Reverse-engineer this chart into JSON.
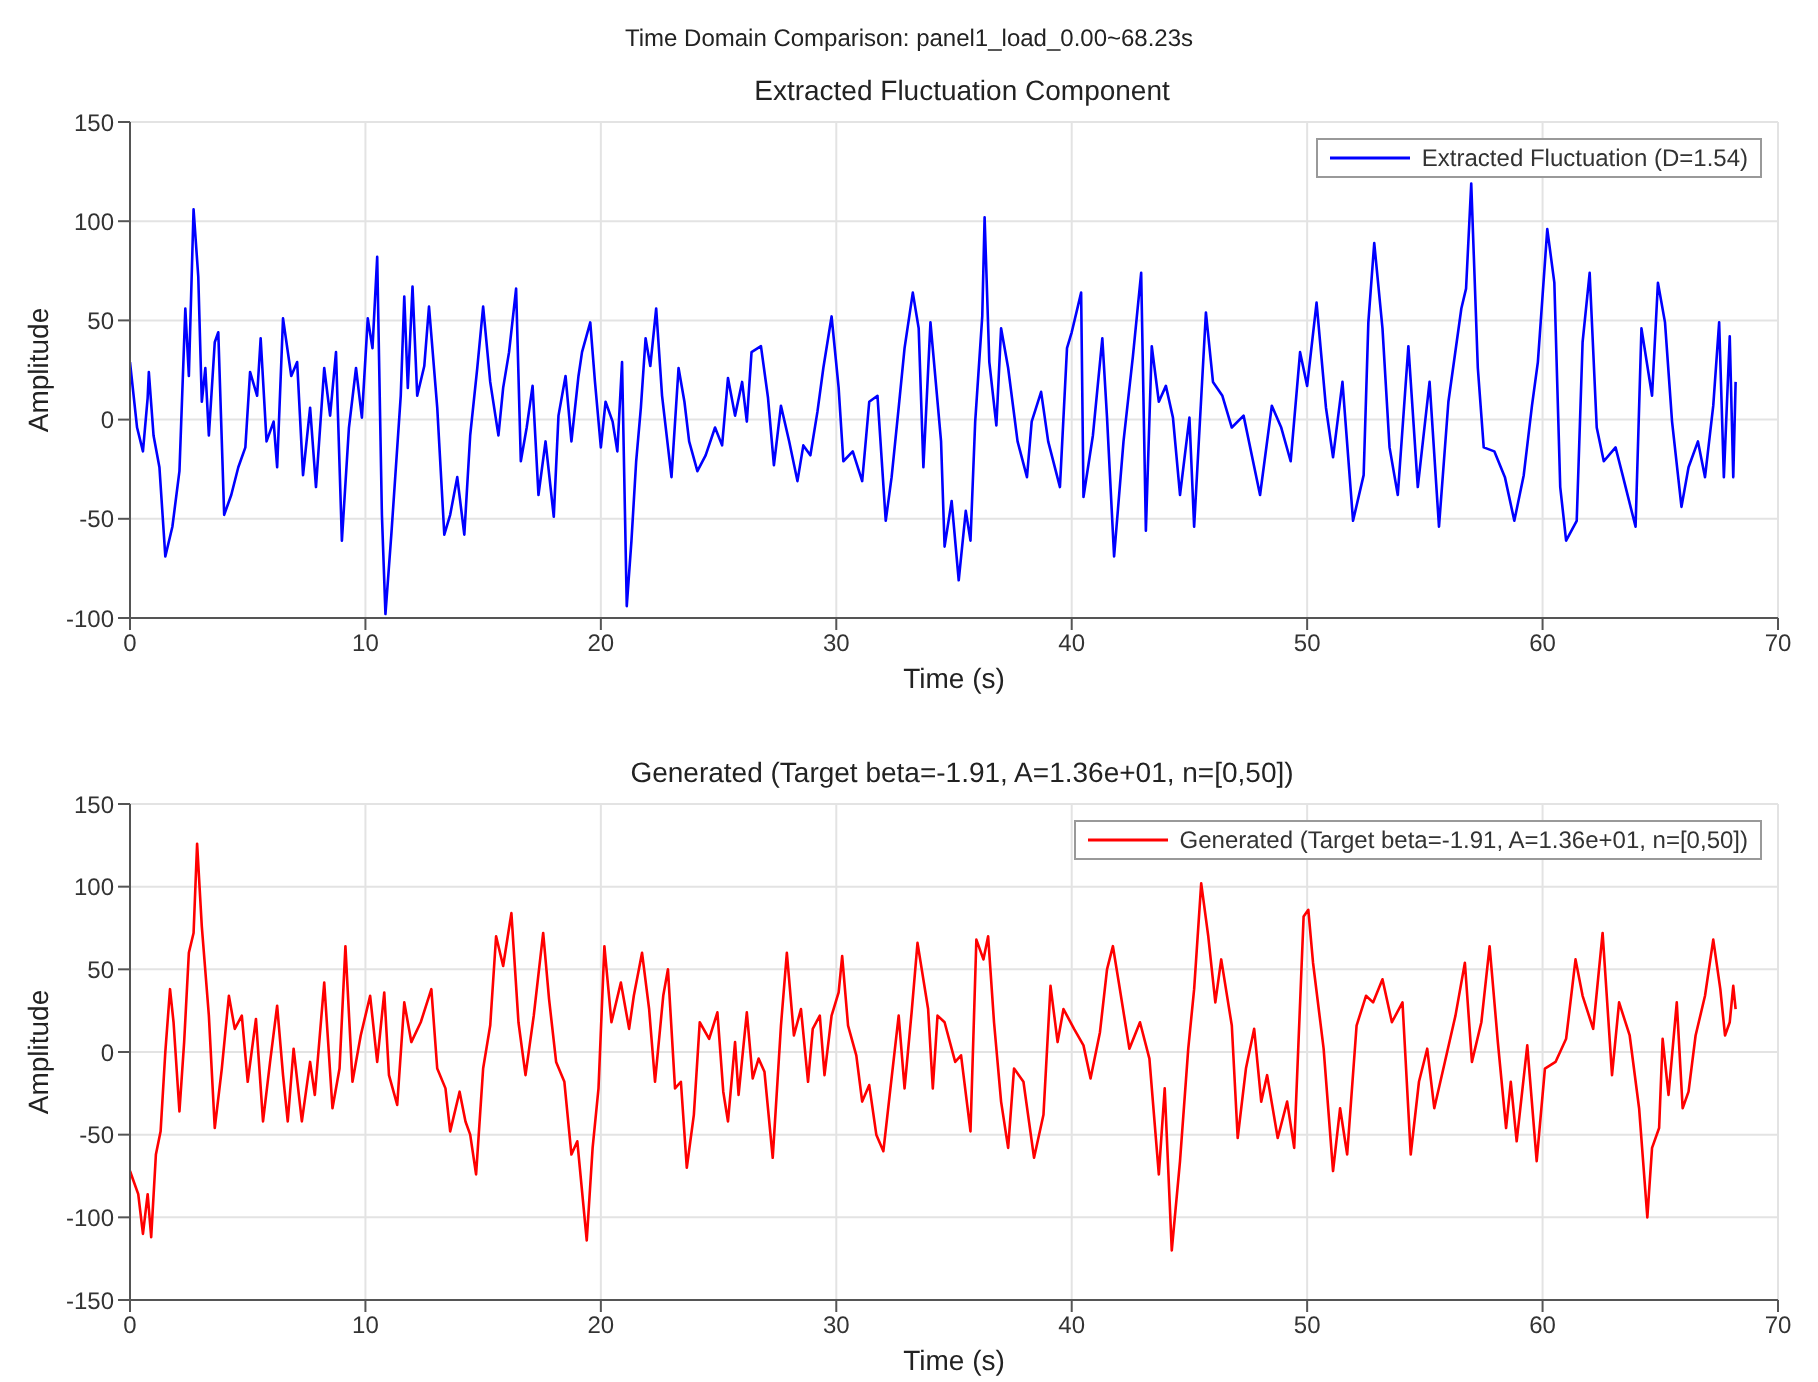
{
  "chart_data": [
    {
      "type": "line",
      "annotations": [
        "Time Domain Comparison: panel1_load_0.00~68.23s"
      ],
      "title": "Extracted Fluctuation Component",
      "xlabel": "Time (s)",
      "ylabel": "Amplitude",
      "xlim": [
        0,
        70
      ],
      "xticks": [
        0,
        10,
        20,
        30,
        40,
        50,
        60,
        70
      ],
      "ylim": [
        -100,
        150
      ],
      "yticks": [
        -100,
        -50,
        0,
        50,
        100,
        150
      ],
      "grid": true,
      "legend": "top right",
      "series": [
        {
          "name": "Extracted Fluctuation (D=1.54)",
          "color": "#0000ff",
          "x": [
            0,
            0.3,
            0.55,
            0.75,
            0.8,
            1.0,
            1.25,
            1.5,
            1.8,
            2.1,
            2.35,
            2.5,
            2.7,
            2.9,
            3.05,
            3.2,
            3.35,
            3.6,
            3.75,
            4.0,
            4.3,
            4.6,
            4.9,
            5.1,
            5.4,
            5.55,
            5.8,
            6.1,
            6.25,
            6.5,
            6.85,
            7.1,
            7.35,
            7.65,
            7.9,
            8.25,
            8.5,
            8.75,
            9.0,
            9.3,
            9.6,
            9.85,
            10.1,
            10.3,
            10.5,
            10.7,
            10.85,
            11.1,
            11.5,
            11.65,
            11.8,
            12.0,
            12.2,
            12.5,
            12.7,
            13.05,
            13.35,
            13.6,
            13.9,
            14.2,
            14.45,
            14.75,
            15.0,
            15.3,
            15.65,
            15.85,
            16.1,
            16.4,
            16.6,
            16.85,
            17.1,
            17.35,
            17.65,
            18.0,
            18.2,
            18.5,
            18.75,
            19.05,
            19.2,
            19.55,
            19.75,
            20.0,
            20.2,
            20.5,
            20.7,
            20.9,
            21.1,
            21.3,
            21.5,
            21.7,
            21.9,
            22.1,
            22.35,
            22.6,
            23.0,
            23.3,
            23.55,
            23.75,
            24.1,
            24.45,
            24.85,
            25.15,
            25.4,
            25.7,
            26.0,
            26.2,
            26.4,
            26.8,
            27.1,
            27.35,
            27.65,
            28.0,
            28.35,
            28.6,
            28.9,
            29.2,
            29.45,
            29.8,
            30.1,
            30.3,
            30.7,
            31.1,
            31.4,
            31.75,
            32.1,
            32.35,
            32.65,
            32.9,
            33.25,
            33.5,
            33.7,
            34.0,
            34.45,
            34.6,
            34.9,
            35.2,
            35.5,
            35.7,
            35.9,
            36.2,
            36.3,
            36.5,
            36.8,
            37.0,
            37.3,
            37.7,
            38.1,
            38.3,
            38.7,
            39.0,
            39.5,
            39.8,
            40.0,
            40.4,
            40.5,
            40.9,
            41.3,
            41.5,
            41.8,
            42.2,
            42.6,
            42.95,
            43.15,
            43.4,
            43.7,
            44.0,
            44.3,
            44.6,
            45.0,
            45.2,
            45.7,
            46.0,
            46.4,
            46.8,
            47.3,
            48.0,
            48.5,
            48.9,
            49.3,
            49.7,
            50.0,
            50.4,
            50.8,
            51.1,
            51.5,
            51.95,
            52.4,
            52.6,
            52.85,
            53.2,
            53.5,
            53.85,
            54.3,
            54.7,
            55.2,
            55.6,
            56.0,
            56.55,
            56.75,
            56.97,
            57.25,
            57.5,
            57.95,
            58.4,
            58.8,
            59.2,
            59.55,
            59.8,
            60.2,
            60.5,
            60.75,
            61.0,
            61.45,
            61.7,
            62.0,
            62.3,
            62.6,
            63.1,
            63.4,
            63.95,
            64.2,
            64.65,
            64.9,
            65.2,
            65.5,
            65.9,
            66.2,
            66.6,
            66.9,
            67.25,
            67.5,
            67.7,
            67.95,
            68.1,
            68.2
          ],
          "values": [
            29,
            -4,
            -16,
            11,
            24,
            -8,
            -24,
            -69,
            -54,
            -26,
            56,
            22,
            106,
            72,
            9,
            26,
            -8,
            39,
            44,
            -48,
            -38,
            -24,
            -14,
            24,
            12,
            41,
            -11,
            -1,
            -24,
            51,
            22,
            29,
            -28,
            6,
            -34,
            26,
            2,
            34,
            -61,
            -4,
            26,
            1,
            51,
            36,
            82,
            -48,
            -98,
            -58,
            12,
            62,
            16,
            67,
            12,
            27,
            57,
            6,
            -58,
            -48,
            -29,
            -58,
            -8,
            26,
            57,
            19,
            -8,
            16,
            34,
            66,
            -21,
            -4,
            17,
            -38,
            -11,
            -49,
            2,
            22,
            -11,
            22,
            34,
            49,
            19,
            -14,
            9,
            -1,
            -16,
            29,
            -94,
            -61,
            -21,
            6,
            41,
            27,
            56,
            12,
            -29,
            26,
            9,
            -11,
            -26,
            -18,
            -4,
            -13,
            21,
            2,
            19,
            -1,
            34,
            37,
            11,
            -23,
            7,
            -11,
            -31,
            -13,
            -18,
            4,
            26,
            52,
            16,
            -21,
            -16,
            -31,
            9,
            12,
            -51,
            -29,
            6,
            36,
            64,
            46,
            -24,
            49,
            -11,
            -64,
            -41,
            -81,
            -46,
            -61,
            -1,
            52,
            102,
            29,
            -3,
            46,
            26,
            -11,
            -29,
            -1,
            14,
            -11,
            -34,
            36,
            44,
            64,
            -39,
            -8,
            41,
            1,
            -69,
            -11,
            32,
            74,
            -56,
            37,
            9,
            17,
            1,
            -38,
            1,
            -54,
            54,
            19,
            12,
            -4,
            2,
            -38,
            7,
            -4,
            -21,
            34,
            17,
            59,
            6,
            -19,
            19,
            -51,
            -28,
            49,
            89,
            46,
            -14,
            -38,
            37,
            -34,
            19,
            -54,
            9,
            56,
            66,
            119,
            26,
            -14,
            -16,
            -29,
            -51,
            -28,
            7,
            29,
            96,
            69,
            -34,
            -61,
            -51,
            39,
            74,
            -4,
            -21,
            -14,
            -28,
            -54,
            46,
            12,
            69,
            49,
            -1,
            -44,
            -24,
            -11,
            -29,
            7,
            49,
            -29,
            42,
            -29,
            19
          ]
        }
      ]
    },
    {
      "type": "line",
      "title": "Generated (Target beta=-1.91, A=1.36e+01, n=[0,50])",
      "xlabel": "Time (s)",
      "ylabel": "Amplitude",
      "xlim": [
        0,
        70
      ],
      "xticks": [
        0,
        10,
        20,
        30,
        40,
        50,
        60,
        70
      ],
      "ylim": [
        -150,
        150
      ],
      "yticks": [
        -150,
        -100,
        -50,
        0,
        50,
        100,
        150
      ],
      "grid": true,
      "legend": "top right",
      "series": [
        {
          "name": "Generated (Target beta=-1.91, A=1.36e+01, n=[0,50])",
          "color": "#ff0000",
          "x": [
            0,
            0.35,
            0.55,
            0.75,
            0.9,
            1.1,
            1.3,
            1.5,
            1.7,
            1.85,
            2.1,
            2.3,
            2.5,
            2.7,
            2.85,
            3.05,
            3.35,
            3.6,
            3.9,
            4.2,
            4.45,
            4.75,
            5.0,
            5.35,
            5.65,
            5.95,
            6.25,
            6.5,
            6.7,
            6.95,
            7.3,
            7.65,
            7.85,
            8.25,
            8.6,
            8.9,
            9.15,
            9.45,
            9.8,
            10.2,
            10.5,
            10.8,
            11.0,
            11.35,
            11.65,
            11.95,
            12.35,
            12.8,
            13.05,
            13.4,
            13.6,
            14.0,
            14.25,
            14.45,
            14.7,
            15.0,
            15.3,
            15.55,
            15.85,
            16.2,
            16.5,
            16.8,
            17.15,
            17.55,
            17.8,
            18.1,
            18.45,
            18.75,
            19.0,
            19.4,
            19.65,
            19.9,
            20.15,
            20.45,
            20.85,
            21.2,
            21.4,
            21.75,
            22.05,
            22.3,
            22.65,
            22.85,
            23.15,
            23.4,
            23.65,
            23.95,
            24.2,
            24.6,
            24.95,
            25.2,
            25.4,
            25.7,
            25.85,
            26.2,
            26.45,
            26.7,
            26.95,
            27.3,
            27.65,
            27.9,
            28.2,
            28.5,
            28.8,
            29.0,
            29.3,
            29.5,
            29.8,
            30.1,
            30.25,
            30.5,
            30.85,
            31.1,
            31.4,
            31.7,
            32.0,
            32.3,
            32.65,
            32.9,
            33.2,
            33.45,
            33.9,
            34.1,
            34.3,
            34.6,
            35.05,
            35.3,
            35.7,
            35.95,
            36.25,
            36.45,
            36.7,
            37.0,
            37.3,
            37.55,
            37.95,
            38.4,
            38.8,
            39.1,
            39.4,
            39.65,
            40.1,
            40.5,
            40.8,
            41.2,
            41.5,
            41.75,
            42.0,
            42.45,
            42.9,
            43.3,
            43.7,
            43.95,
            44.25,
            44.6,
            44.95,
            45.2,
            45.5,
            45.8,
            46.1,
            46.35,
            46.8,
            47.05,
            47.4,
            47.75,
            48.05,
            48.3,
            48.75,
            49.15,
            49.45,
            49.85,
            50.05,
            50.25,
            50.7,
            51.1,
            51.4,
            51.7,
            52.1,
            52.5,
            52.8,
            53.2,
            53.6,
            54.05,
            54.4,
            54.75,
            55.1,
            55.4,
            55.85,
            56.3,
            56.7,
            57.0,
            57.4,
            57.75,
            58.1,
            58.45,
            58.65,
            58.9,
            59.35,
            59.75,
            60.1,
            60.55,
            61.0,
            61.4,
            61.7,
            62.15,
            62.55,
            62.95,
            63.25,
            63.7,
            64.1,
            64.45,
            64.65,
            64.95,
            65.1,
            65.35,
            65.7,
            65.95,
            66.2,
            66.5,
            66.9,
            67.25,
            67.55,
            67.75,
            67.95,
            68.1,
            68.2
          ],
          "values": [
            -72,
            -86,
            -110,
            -86,
            -112,
            -62,
            -48,
            0,
            38,
            18,
            -36,
            6,
            60,
            72,
            126,
            76,
            22,
            -46,
            -10,
            34,
            14,
            22,
            -18,
            20,
            -42,
            -6,
            28,
            -14,
            -42,
            2,
            -42,
            -6,
            -26,
            42,
            -34,
            -10,
            64,
            -18,
            10,
            34,
            -6,
            36,
            -14,
            -32,
            30,
            6,
            18,
            38,
            -10,
            -22,
            -48,
            -24,
            -42,
            -50,
            -74,
            -10,
            16,
            70,
            52,
            84,
            18,
            -14,
            22,
            72,
            32,
            -6,
            -18,
            -62,
            -54,
            -114,
            -58,
            -22,
            64,
            18,
            42,
            14,
            34,
            60,
            26,
            -18,
            34,
            50,
            -22,
            -18,
            -70,
            -38,
            18,
            8,
            24,
            -24,
            -42,
            6,
            -26,
            24,
            -16,
            -4,
            -12,
            -64,
            16,
            60,
            10,
            26,
            -18,
            14,
            22,
            -14,
            22,
            36,
            58,
            16,
            -2,
            -30,
            -20,
            -50,
            -60,
            -22,
            22,
            -22,
            24,
            66,
            26,
            -22,
            22,
            18,
            -6,
            -2,
            -48,
            68,
            56,
            70,
            18,
            -30,
            -58,
            -10,
            -18,
            -64,
            -38,
            40,
            6,
            26,
            14,
            4,
            -16,
            12,
            50,
            64,
            42,
            2,
            18,
            -4,
            -74,
            -22,
            -120,
            -66,
            2,
            38,
            102,
            70,
            30,
            56,
            16,
            -52,
            -10,
            14,
            -30,
            -14,
            -52,
            -30,
            -58,
            82,
            86,
            54,
            2,
            -72,
            -34,
            -62,
            16,
            34,
            30,
            44,
            18,
            30,
            -62,
            -18,
            2,
            -34,
            -6,
            22,
            54,
            -6,
            18,
            64,
            6,
            -46,
            -18,
            -54,
            4,
            -66,
            -10,
            -6,
            8,
            56,
            34,
            14,
            72,
            -14,
            30,
            10,
            -34,
            -100,
            -58,
            -46,
            8,
            -26,
            30,
            -34,
            -24,
            10,
            34,
            68,
            38,
            10,
            18,
            40,
            26
          ]
        }
      ]
    }
  ]
}
